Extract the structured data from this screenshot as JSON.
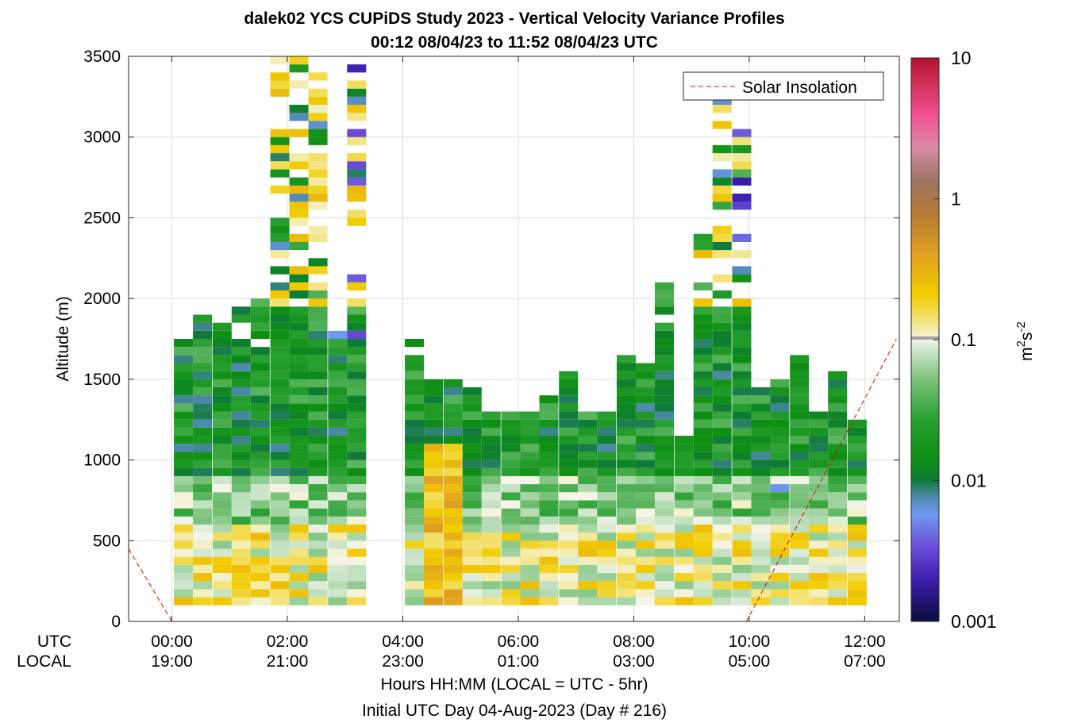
{
  "title": {
    "line1": "dalek02 YCS CUPiDS Study 2023 - Vertical Velocity Variance Profiles",
    "line2": "00:12 08/04/23 to 11:52 08/04/23  UTC"
  },
  "axes": {
    "ylabel": "Altitude (m)",
    "xlabel": "Hours HH:MM  (LOCAL = UTC - 5hr)",
    "subxlabel": "Initial UTC Day 04-Aug-2023 (Day # 216)",
    "row_utc": "UTC",
    "row_local": "LOCAL",
    "xticks_utc": [
      "00:00",
      "02:00",
      "04:00",
      "06:00",
      "08:00",
      "10:00",
      "12:00"
    ],
    "xticks_local": [
      "19:00",
      "21:00",
      "23:00",
      "01:00",
      "03:00",
      "05:00",
      "07:00"
    ],
    "yticks": [
      "0",
      "500",
      "1000",
      "1500",
      "2000",
      "2500",
      "3000",
      "3500"
    ]
  },
  "legend": {
    "label": "Solar Insolation"
  },
  "colorbar": {
    "label_base": "m",
    "label_exp1": "2",
    "label_mid": "s",
    "label_exp2": "-2",
    "ticks": [
      "10",
      "1",
      "0.1",
      "0.01",
      "0.001"
    ]
  },
  "colors": {
    "solar_line": "#e00000",
    "grid": "#dcdcdc",
    "axis": "#262626"
  },
  "chart_data": {
    "type": "heatmap",
    "title": "dalek02 YCS CUPiDS Study 2023 - Vertical Velocity Variance Profiles",
    "subtitle": "00:12 08/04/23 to 11:52 08/04/23  UTC",
    "xlabel": "Hours HH:MM  (LOCAL = UTC - 5hr)",
    "ylabel": "Altitude (m)",
    "xlim_hours_utc": [
      -0.75,
      12.6
    ],
    "ylim": [
      0,
      3500
    ],
    "grid": true,
    "legend_position": "top-right",
    "colorbar": {
      "scale": "log",
      "range": [
        0.001,
        10
      ],
      "units": "m^2 s^-2"
    },
    "profile_times_utc_hours": [
      0.2,
      0.53,
      0.87,
      1.2,
      1.53,
      1.87,
      2.2,
      2.53,
      2.87,
      3.2,
      4.2,
      4.53,
      4.87,
      5.2,
      5.53,
      5.87,
      6.2,
      6.53,
      6.87,
      7.2,
      7.53,
      7.87,
      8.2,
      8.53,
      8.87,
      9.2,
      9.53,
      9.87,
      10.2,
      10.53,
      10.87,
      11.2,
      11.53,
      11.87
    ],
    "profile_top_altitude_m": [
      1800,
      1900,
      1900,
      1950,
      2000,
      3500,
      3500,
      3400,
      1800,
      3500,
      1750,
      1500,
      1500,
      1450,
      1300,
      1300,
      1300,
      1400,
      1550,
      1300,
      1300,
      1650,
      1600,
      2150,
      1150,
      2400,
      3250,
      3200,
      1450,
      1500,
      1650,
      1300,
      1550,
      1250
    ],
    "cell_height_m": 50,
    "solar_insolation_line": {
      "t_hours": [
        -0.75,
        0.0,
        9.95,
        12.55
      ],
      "altitude_m": [
        450,
        0,
        0,
        1750
      ]
    },
    "value_range_observed_m2s2": [
      0.001,
      0.5
    ]
  }
}
